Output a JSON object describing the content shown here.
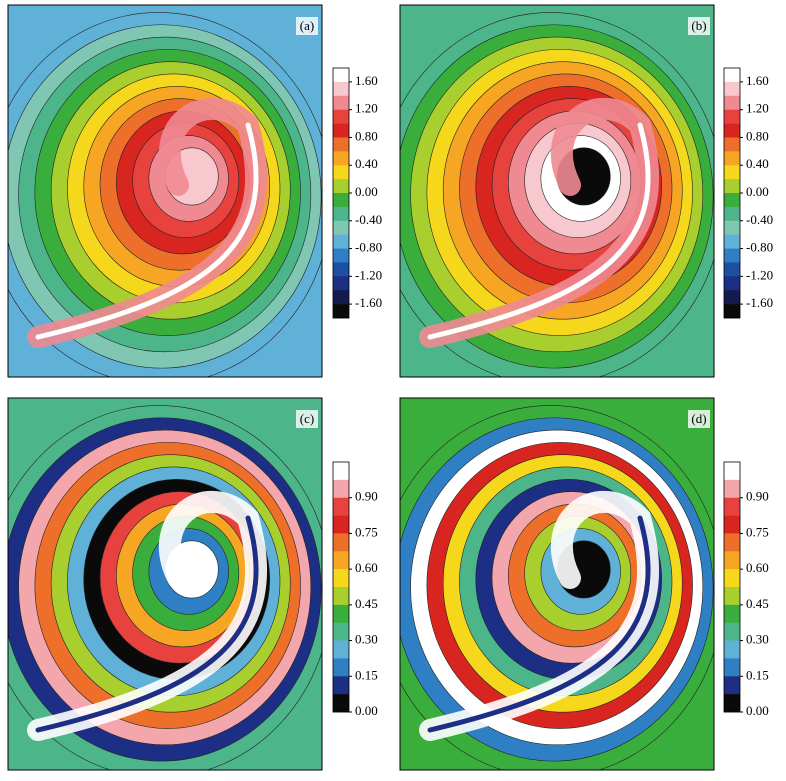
{
  "panels": [
    {
      "label": "(a)",
      "colorbar": {
        "lim": [
          -1.8,
          1.8
        ],
        "ticks": [
          {
            "value": 1.6,
            "label": "1.60"
          },
          {
            "value": 1.2,
            "label": "1.20"
          },
          {
            "value": 0.8,
            "label": "0.80"
          },
          {
            "value": 0.4,
            "label": "0.40"
          },
          {
            "value": 0,
            "label": "0.00"
          },
          {
            "value": -0.4,
            "label": "-0.40"
          },
          {
            "value": -0.8,
            "label": "-0.80"
          },
          {
            "value": -1.2,
            "label": "-1.20"
          },
          {
            "value": -1.6,
            "label": "-1.60"
          }
        ],
        "colors": [
          "#ffffff",
          "#f7c9cf",
          "#f08a92",
          "#e8423e",
          "#d9251f",
          "#ee6f2a",
          "#f6a623",
          "#f5d81b",
          "#a8cf2d",
          "#3aae3c",
          "#4cb58a",
          "#7fc6b3",
          "#5fb1d8",
          "#2f7fc4",
          "#1d4fa2",
          "#1c2f85",
          "#141a4e",
          "#0a0a0a"
        ]
      }
    },
    {
      "label": "(b)",
      "colorbar": {
        "lim": [
          -1.8,
          1.8
        ],
        "ticks": [
          {
            "value": 1.6,
            "label": "1.60"
          },
          {
            "value": 1.2,
            "label": "1.20"
          },
          {
            "value": 0.8,
            "label": "0.80"
          },
          {
            "value": 0.4,
            "label": "0.40"
          },
          {
            "value": 0,
            "label": "0.00"
          },
          {
            "value": -0.4,
            "label": "-0.40"
          },
          {
            "value": -0.8,
            "label": "-0.80"
          },
          {
            "value": -1.2,
            "label": "-1.20"
          },
          {
            "value": -1.6,
            "label": "-1.60"
          }
        ],
        "colors": [
          "#ffffff",
          "#f7c9cf",
          "#f08a92",
          "#e8423e",
          "#d9251f",
          "#ee6f2a",
          "#f6a623",
          "#f5d81b",
          "#a8cf2d",
          "#3aae3c",
          "#4cb58a",
          "#7fc6b3",
          "#5fb1d8",
          "#2f7fc4",
          "#1d4fa2",
          "#1c2f85",
          "#141a4e",
          "#0a0a0a"
        ]
      }
    },
    {
      "label": "(c)",
      "colorbar": {
        "lim": [
          0,
          1.05
        ],
        "ticks": [
          {
            "value": 0.9,
            "label": "0.90"
          },
          {
            "value": 0.75,
            "label": "0.75"
          },
          {
            "value": 0.6,
            "label": "0.60"
          },
          {
            "value": 0.45,
            "label": "0.45"
          },
          {
            "value": 0.3,
            "label": "0.30"
          },
          {
            "value": 0.15,
            "label": "0.15"
          },
          {
            "value": 0,
            "label": "0.00"
          }
        ],
        "colors": [
          "#ffffff",
          "#f4a6ad",
          "#e8423e",
          "#d9251f",
          "#ee6f2a",
          "#f6a623",
          "#f5d81b",
          "#a8cf2d",
          "#3aae3c",
          "#4cb58a",
          "#5fb1d8",
          "#2f7fc4",
          "#1c2f85",
          "#0a0a0a"
        ]
      }
    },
    {
      "label": "(d)",
      "colorbar": {
        "lim": [
          0,
          1.05
        ],
        "ticks": [
          {
            "value": 0.9,
            "label": "0.90"
          },
          {
            "value": 0.75,
            "label": "0.75"
          },
          {
            "value": 0.6,
            "label": "0.60"
          },
          {
            "value": 0.45,
            "label": "0.45"
          },
          {
            "value": 0.3,
            "label": "0.30"
          },
          {
            "value": 0.15,
            "label": "0.15"
          },
          {
            "value": 0,
            "label": "0.00"
          }
        ],
        "colors": [
          "#ffffff",
          "#f4a6ad",
          "#e8423e",
          "#d9251f",
          "#ee6f2a",
          "#f6a623",
          "#f5d81b",
          "#a8cf2d",
          "#3aae3c",
          "#4cb58a",
          "#5fb1d8",
          "#2f7fc4",
          "#1c2f85",
          "#0a0a0a"
        ]
      }
    }
  ]
}
